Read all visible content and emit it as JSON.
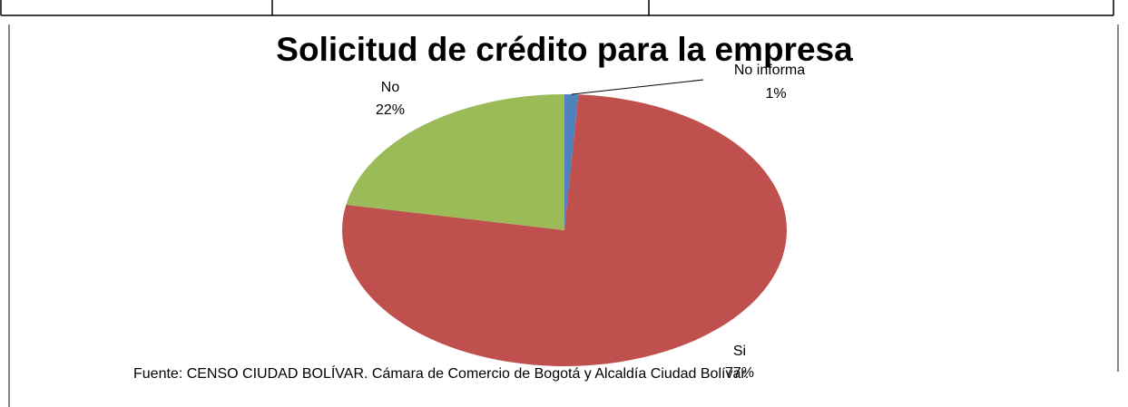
{
  "chart_data": {
    "type": "pie",
    "title": "Solicitud de crédito para la empresa",
    "categories": [
      "No informa",
      "Si",
      "No"
    ],
    "values": [
      1,
      77,
      22
    ],
    "value_labels": [
      "1%",
      "77%",
      "22%"
    ],
    "colors": [
      "#4f81bd",
      "#c0504d",
      "#9bbb59"
    ],
    "source": "Fuente: CENSO CIUDAD BOLÍVAR. Cámara de Comercio de Bogotá y Alcaldía Ciudad Bolívar."
  }
}
